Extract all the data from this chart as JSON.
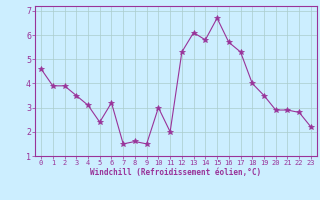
{
  "x": [
    0,
    1,
    2,
    3,
    4,
    5,
    6,
    7,
    8,
    9,
    10,
    11,
    12,
    13,
    14,
    15,
    16,
    17,
    18,
    19,
    20,
    21,
    22,
    23
  ],
  "y": [
    4.6,
    3.9,
    3.9,
    3.5,
    3.1,
    2.4,
    3.2,
    1.5,
    1.6,
    1.5,
    3.0,
    2.0,
    5.3,
    6.1,
    5.8,
    6.7,
    5.7,
    5.3,
    4.0,
    3.5,
    2.9,
    2.9,
    2.8,
    2.2
  ],
  "line_color": "#993399",
  "marker": "*",
  "marker_size": 4,
  "bg_color": "#cceeff",
  "grid_color": "#aacccc",
  "xlabel": "Windchill (Refroidissement éolien,°C)",
  "xlabel_color": "#993399",
  "tick_color": "#993399",
  "xlim": [
    -0.5,
    23.5
  ],
  "ylim": [
    1.0,
    7.2
  ],
  "yticks": [
    1,
    2,
    3,
    4,
    5,
    6,
    7
  ],
  "xticks": [
    0,
    1,
    2,
    3,
    4,
    5,
    6,
    7,
    8,
    9,
    10,
    11,
    12,
    13,
    14,
    15,
    16,
    17,
    18,
    19,
    20,
    21,
    22,
    23
  ],
  "spine_color": "#993399"
}
